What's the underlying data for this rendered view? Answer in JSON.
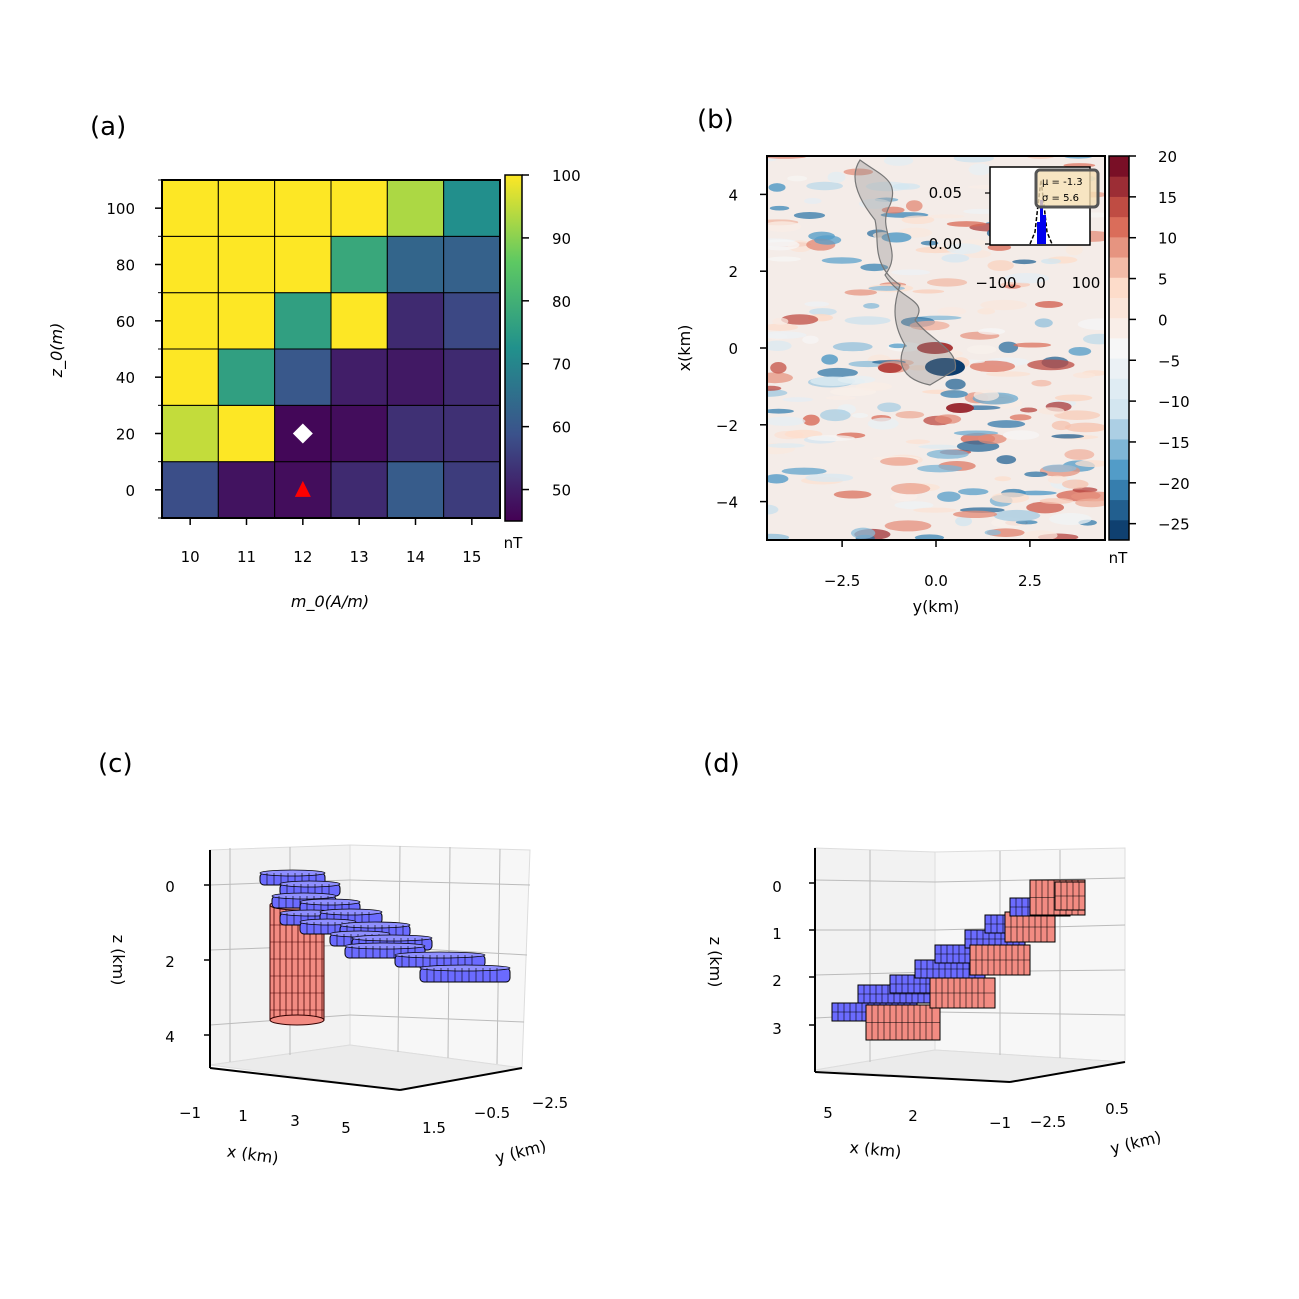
{
  "panels": {
    "a": {
      "label": "(a)",
      "xlabel": "m_0(A/m)",
      "ylabel": "z_0(m)",
      "colorbar_unit": "nT",
      "colorbar_ticks": [
        "50",
        "60",
        "70",
        "80",
        "90",
        "100"
      ]
    },
    "b": {
      "label": "(b)",
      "xlabel": "y(km)",
      "ylabel": "x(km)",
      "colorbar_unit": "nT",
      "colorbar_ticks": [
        "−25",
        "−20",
        "−15",
        "−10",
        "−5",
        "0",
        "5",
        "10",
        "15",
        "20"
      ],
      "inset": {
        "mu": "μ = -1.3",
        "sigma": "σ = 5.6",
        "yticks": [
          "0.05",
          "0.00"
        ],
        "xticks": [
          "−100",
          "0",
          "100"
        ]
      }
    },
    "c": {
      "label": "(c)",
      "zlabel": "z (km)",
      "xlabel": "x (km)",
      "ylabel": "y (km)",
      "zticks": [
        "0",
        "2",
        "4"
      ],
      "xticks": [
        "−1",
        "1",
        "3",
        "5"
      ],
      "yticks": [
        "1.5",
        "−0.5",
        "−2.5"
      ]
    },
    "d": {
      "label": "(d)",
      "zlabel": "z (km)",
      "xlabel": "x (km)",
      "ylabel": "y (km)",
      "zticks": [
        "0",
        "1",
        "2",
        "3"
      ],
      "xticks": [
        "5",
        "2",
        "−1"
      ],
      "yticks": [
        "−2.5",
        "0.5"
      ]
    }
  },
  "chart_data": [
    {
      "type": "heatmap",
      "panel": "a",
      "xlabel": "m_0(A/m)",
      "ylabel": "z_0(m)",
      "x": [
        10,
        11,
        12,
        13,
        14,
        15
      ],
      "y": [
        0,
        20,
        40,
        60,
        80,
        100
      ],
      "xlim": [
        9.5,
        15.5
      ],
      "ylim": [
        -10,
        110
      ],
      "values": [
        [
          58,
          48,
          47,
          52,
          61,
          55
        ],
        [
          95,
          100,
          46,
          47,
          53,
          53
        ],
        [
          100,
          76,
          60,
          50,
          49,
          52
        ],
        [
          100,
          100,
          76,
          100,
          52,
          57
        ],
        [
          100,
          100,
          100,
          78,
          63,
          62
        ],
        [
          100,
          100,
          100,
          100,
          93,
          72
        ]
      ],
      "colorbar_range": [
        45,
        100
      ],
      "colormap": "viridis",
      "markers": [
        {
          "x": 12,
          "y": 20,
          "shape": "diamond",
          "color": "#ffffff"
        },
        {
          "x": 12,
          "y": 0,
          "shape": "triangle",
          "color": "#ff0000"
        }
      ]
    },
    {
      "type": "heatmap",
      "panel": "b",
      "xlabel": "y(km)",
      "ylabel": "x(km)",
      "xlim": [
        -4.5,
        4.5
      ],
      "ylim": [
        -5,
        5
      ],
      "xticks": [
        -2.5,
        0.0,
        2.5
      ],
      "yticks": [
        -4,
        -2,
        0,
        2,
        4
      ],
      "colorbar_range": [
        -27,
        20
      ],
      "colormap": "RdBu_r",
      "inset": {
        "type": "histogram",
        "mu": -1.3,
        "sigma": 5.6,
        "xlim": [
          -110,
          110
        ],
        "ylim": [
          0,
          0.09
        ]
      }
    }
  ]
}
